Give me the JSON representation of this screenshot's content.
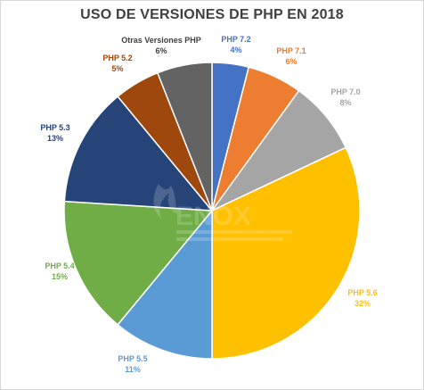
{
  "chart_data": {
    "type": "pie",
    "title": "USO DE VERSIONES DE PHP EN 2018",
    "categories": [
      "PHP 7.2",
      "PHP 7.1",
      "PHP 7.0",
      "PHP 5.6",
      "PHP 5.5",
      "PHP 5.4",
      "PHP 5.3",
      "PHP 5.2",
      "Otras Versiones PHP"
    ],
    "values": [
      4,
      6,
      8,
      32,
      11,
      15,
      13,
      5,
      6
    ],
    "value_labels": [
      "4%",
      "6%",
      "8%",
      "32%",
      "11%",
      "15%",
      "13%",
      "5%",
      "6%"
    ],
    "colors": [
      "#4472c4",
      "#ed7d31",
      "#a5a5a5",
      "#ffc000",
      "#5b9bd5",
      "#70ad47",
      "#264478",
      "#9e480e",
      "#636363"
    ],
    "label_colors": [
      "#4472c4",
      "#ed7d31",
      "#a5a5a5",
      "#ffc000",
      "#5b9bd5",
      "#70ad47",
      "#264478",
      "#9e480e",
      "#404040"
    ],
    "legend": "none",
    "watermark": "ENOX"
  }
}
